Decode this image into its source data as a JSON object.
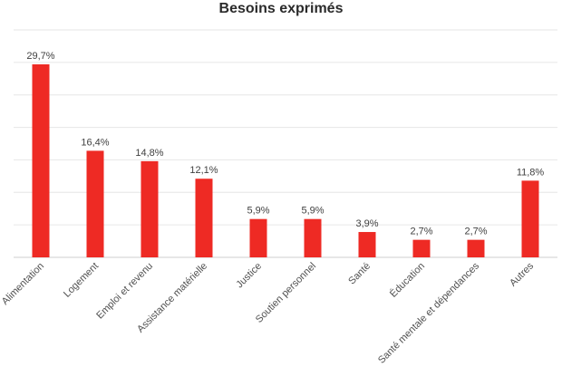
{
  "chart_data": {
    "type": "bar",
    "title": "Besoins exprimés",
    "xlabel": "",
    "ylabel": "",
    "ylim": [
      0,
      35
    ],
    "grid": true,
    "legend": "none",
    "color": "#ee2a24",
    "categories": [
      "Alimentation",
      "Logement",
      "Emploi et revenu",
      "Assistance matérielle",
      "Justice",
      "Soutien personnel",
      "Santé",
      "Éducation",
      "Santé mentale et dépendances",
      "Autres"
    ],
    "values": [
      29.7,
      16.4,
      14.8,
      12.1,
      5.9,
      5.9,
      3.9,
      2.7,
      2.7,
      11.8
    ],
    "value_labels": [
      "29,7%",
      "16,4%",
      "14,8%",
      "12,1%",
      "5,9%",
      "5,9%",
      "3,9%",
      "2,7%",
      "2,7%",
      "11,8%"
    ]
  }
}
